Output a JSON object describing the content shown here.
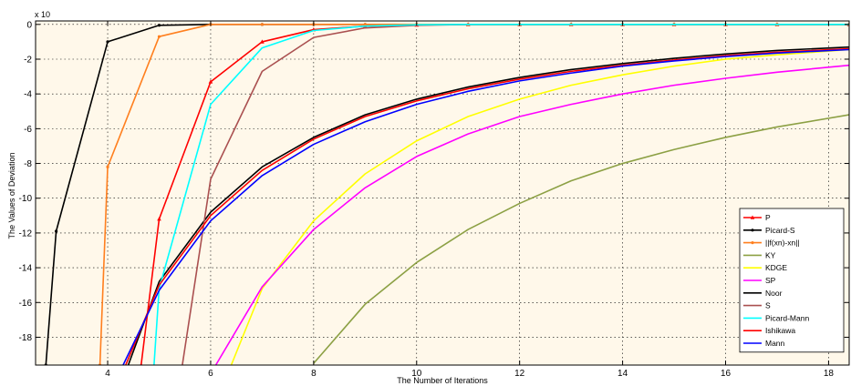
{
  "chart_data": {
    "type": "line",
    "title": "",
    "xlabel": "The Number of Iterations",
    "ylabel": "The Values of Deviation",
    "y_scale_label": "x 10",
    "xlim": [
      2.6,
      18.4
    ],
    "ylim": [
      -19.6,
      0.2
    ],
    "x_ticks": [
      4,
      6,
      8,
      10,
      12,
      14,
      16,
      18
    ],
    "y_ticks": [
      0,
      -2,
      -4,
      -6,
      -8,
      -10,
      -12,
      -14,
      -16,
      -18
    ],
    "grid": true,
    "legend_position": "bottom-right",
    "background_color": "#fff8ea",
    "series": [
      {
        "name": "P",
        "color": "#ff0000",
        "marker": "triangle",
        "x": [
          4.65,
          5,
          6,
          7,
          8,
          9,
          10,
          11,
          12,
          13,
          14,
          15,
          16,
          17,
          18.4
        ],
        "y": [
          -19.6,
          -11.2,
          -3.3,
          -1.0,
          -0.3,
          -0.1,
          -0.03,
          0,
          0,
          0,
          0,
          0,
          0,
          0,
          0
        ]
      },
      {
        "name": "Picard-S",
        "color": "#000000",
        "marker": "dot",
        "x": [
          2.8,
          3,
          4,
          5,
          6,
          7,
          8,
          9,
          10,
          11,
          12,
          13,
          14,
          15,
          16,
          17,
          18.4
        ],
        "y": [
          -19.6,
          -11.9,
          -1.0,
          -0.05,
          0,
          0,
          0,
          0,
          0,
          0,
          0,
          0,
          0,
          0,
          0,
          0,
          0
        ]
      },
      {
        "name": "||f(xn)-xn||",
        "color": "#ff7f1e",
        "marker": "dot",
        "x": [
          3.85,
          4,
          5,
          6,
          7,
          8,
          9,
          10,
          11,
          12,
          13,
          14,
          15,
          16,
          17,
          18.4
        ],
        "y": [
          -19.6,
          -8.2,
          -0.7,
          0,
          0,
          0,
          0,
          0,
          0,
          0,
          0,
          0,
          0,
          0,
          0,
          0
        ]
      },
      {
        "name": "KY",
        "color": "#8ca044",
        "marker": "none",
        "x": [
          8,
          9,
          10,
          11,
          12,
          13,
          14,
          15,
          16,
          17,
          18.4
        ],
        "y": [
          -19.5,
          -16.1,
          -13.7,
          -11.8,
          -10.3,
          -9.0,
          -8.0,
          -7.2,
          -6.5,
          -5.9,
          -5.2
        ]
      },
      {
        "name": "KDGE",
        "color": "#ffff00",
        "marker": "none",
        "x": [
          6.4,
          7,
          8,
          9,
          10,
          11,
          12,
          13,
          14,
          15,
          16,
          17,
          18.4
        ],
        "y": [
          -19.6,
          -15.2,
          -11.3,
          -8.6,
          -6.7,
          -5.3,
          -4.3,
          -3.5,
          -2.9,
          -2.4,
          -2.0,
          -1.75,
          -1.45
        ]
      },
      {
        "name": "SP",
        "color": "#ff00ff",
        "marker": "none",
        "x": [
          6.1,
          7,
          8,
          9,
          10,
          11,
          12,
          13,
          14,
          15,
          16,
          17,
          18.4
        ],
        "y": [
          -19.6,
          -15.1,
          -11.8,
          -9.4,
          -7.6,
          -6.3,
          -5.3,
          -4.6,
          -4.0,
          -3.5,
          -3.1,
          -2.75,
          -2.35
        ]
      },
      {
        "name": "Noor",
        "color": "#000000",
        "marker": "none",
        "x": [
          4.4,
          5,
          6,
          7,
          8,
          9,
          10,
          11,
          12,
          13,
          14,
          15,
          16,
          17,
          18.4
        ],
        "y": [
          -19.6,
          -14.8,
          -10.8,
          -8.2,
          -6.5,
          -5.2,
          -4.3,
          -3.6,
          -3.05,
          -2.6,
          -2.25,
          -1.95,
          -1.7,
          -1.5,
          -1.3
        ]
      },
      {
        "name": "S",
        "color": "#aa5050",
        "marker": "none",
        "x": [
          5.45,
          6,
          7,
          8,
          9,
          10,
          11,
          12,
          13,
          14,
          15,
          16,
          17,
          18.4
        ],
        "y": [
          -19.6,
          -8.9,
          -2.7,
          -0.75,
          -0.2,
          -0.05,
          0,
          0,
          0,
          0,
          0,
          0,
          0,
          0
        ]
      },
      {
        "name": "Picard-Mann",
        "color": "#00ffff",
        "marker": "none",
        "x": [
          4.9,
          5,
          6,
          7,
          8,
          9,
          10,
          11,
          12,
          13,
          14,
          15,
          16,
          17,
          18.4
        ],
        "y": [
          -19.6,
          -15.2,
          -4.6,
          -1.35,
          -0.35,
          -0.1,
          -0.02,
          0,
          0,
          0,
          0,
          0,
          0,
          0,
          0
        ]
      },
      {
        "name": "Ishikawa",
        "color": "#ff0000",
        "marker": "none",
        "x": [
          4.35,
          5,
          6,
          7,
          8,
          9,
          10,
          11,
          12,
          13,
          14,
          15,
          16,
          17,
          18.4
        ],
        "y": [
          -19.6,
          -15.0,
          -11.0,
          -8.4,
          -6.6,
          -5.3,
          -4.4,
          -3.7,
          -3.15,
          -2.7,
          -2.35,
          -2.05,
          -1.8,
          -1.6,
          -1.4
        ]
      },
      {
        "name": "Mann",
        "color": "#0000ff",
        "marker": "none",
        "x": [
          4.3,
          5,
          6,
          7,
          8,
          9,
          10,
          11,
          12,
          13,
          14,
          15,
          16,
          17,
          18.4
        ],
        "y": [
          -19.6,
          -15.3,
          -11.3,
          -8.7,
          -6.9,
          -5.6,
          -4.6,
          -3.85,
          -3.25,
          -2.8,
          -2.4,
          -2.1,
          -1.85,
          -1.65,
          -1.45
        ]
      }
    ]
  }
}
